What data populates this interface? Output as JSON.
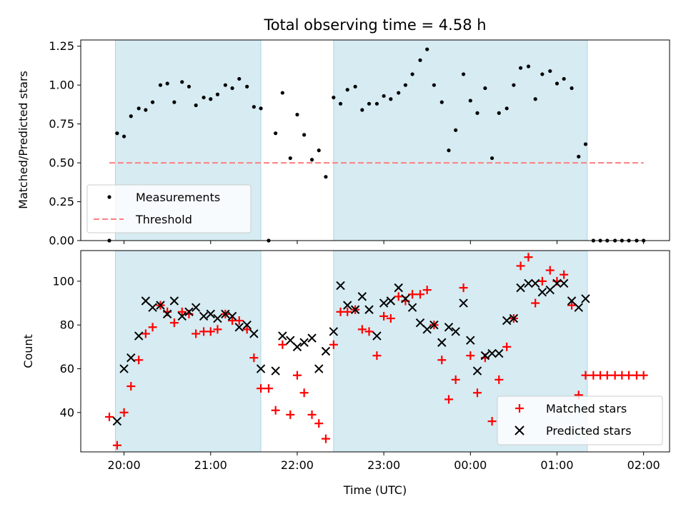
{
  "chart_data": [
    {
      "type": "scatter",
      "title": "Total observing time = 4.58 h",
      "ylabel": "Matched/Predicted stars",
      "xlabel": "",
      "xlim_hours": [
        19.5,
        26.3
      ],
      "ylim": [
        0,
        1.29
      ],
      "yticks": [
        "0.00",
        "0.25",
        "0.50",
        "0.75",
        "1.00",
        "1.25"
      ],
      "yticks_values": [
        0,
        0.25,
        0.5,
        0.75,
        1.0,
        1.25
      ],
      "xticks": [
        "20:00",
        "21:00",
        "22:00",
        "23:00",
        "00:00",
        "01:00",
        "02:00"
      ],
      "xticks_hours": [
        20,
        21,
        22,
        23,
        24,
        25,
        26
      ],
      "legend_position": "lower-left",
      "legend": [
        {
          "label": "Measurements",
          "marker": "dot",
          "color": "#000000"
        },
        {
          "label": "Threshold",
          "marker": "dashed-line",
          "color": "#ff7f7f"
        }
      ],
      "shaded_spans_hours": [
        [
          19.9,
          21.58
        ],
        [
          22.42,
          25.35
        ]
      ],
      "shade_color": "#add8e6",
      "threshold": {
        "value": 0.5,
        "x_hours": [
          19.83,
          26.0
        ]
      },
      "series": [
        {
          "name": "Measurements",
          "x_hours": [
            19.83,
            19.92,
            20.0,
            20.08,
            20.17,
            20.25,
            20.33,
            20.42,
            20.5,
            20.58,
            20.67,
            20.75,
            20.83,
            20.92,
            21.0,
            21.08,
            21.17,
            21.25,
            21.33,
            21.42,
            21.5,
            21.58,
            21.67,
            21.75,
            21.83,
            21.92,
            22.0,
            22.08,
            22.17,
            22.25,
            22.33,
            22.42,
            22.5,
            22.58,
            22.67,
            22.75,
            22.83,
            22.92,
            23.0,
            23.08,
            23.17,
            23.25,
            23.33,
            23.42,
            23.5,
            23.58,
            23.67,
            23.75,
            23.83,
            23.92,
            24.0,
            24.08,
            24.17,
            24.25,
            24.33,
            24.42,
            24.5,
            24.58,
            24.67,
            24.75,
            24.83,
            24.92,
            25.0,
            25.08,
            25.17,
            25.25,
            25.33,
            25.42,
            25.5,
            25.58,
            25.67,
            25.75,
            25.83,
            25.92,
            26.0
          ],
          "y": [
            0,
            0.69,
            0.67,
            0.8,
            0.85,
            0.84,
            0.89,
            1.0,
            1.01,
            0.89,
            1.02,
            0.99,
            0.87,
            0.92,
            0.91,
            0.94,
            1.0,
            0.98,
            1.04,
            0.99,
            0.86,
            0.85,
            0,
            0.69,
            0.95,
            0.53,
            0.81,
            0.68,
            0.52,
            0.58,
            0.41,
            0.92,
            0.88,
            0.97,
            0.99,
            0.84,
            0.88,
            0.88,
            0.93,
            0.91,
            0.95,
            1.0,
            1.07,
            1.16,
            1.23,
            1.0,
            0.89,
            0.58,
            0.71,
            1.07,
            0.9,
            0.82,
            0.98,
            0.53,
            0.82,
            0.85,
            1.0,
            1.11,
            1.12,
            0.91,
            1.07,
            1.09,
            1.01,
            1.04,
            0.98,
            0.54,
            0.62,
            0,
            0,
            0,
            0,
            0,
            0,
            0,
            0
          ]
        }
      ]
    },
    {
      "type": "scatter",
      "title": "",
      "ylabel": "Count",
      "xlabel": "Time (UTC)",
      "xlim_hours": [
        19.5,
        26.3
      ],
      "ylim": [
        22,
        114
      ],
      "yticks": [
        "40",
        "60",
        "80",
        "100"
      ],
      "yticks_values": [
        40,
        60,
        80,
        100
      ],
      "xticks": [
        "20:00",
        "21:00",
        "22:00",
        "23:00",
        "00:00",
        "01:00",
        "02:00"
      ],
      "xticks_hours": [
        20,
        21,
        22,
        23,
        24,
        25,
        26
      ],
      "legend_position": "lower-right",
      "legend": [
        {
          "label": "Matched stars",
          "marker": "plus",
          "color": "#ff0000"
        },
        {
          "label": "Predicted stars",
          "marker": "x",
          "color": "#000000"
        }
      ],
      "shaded_spans_hours": [
        [
          19.9,
          21.58
        ],
        [
          22.42,
          25.35
        ]
      ],
      "shade_color": "#add8e6",
      "series": [
        {
          "name": "Matched stars",
          "marker": "plus",
          "color": "#ff0000",
          "x_hours": [
            19.83,
            19.92,
            20.0,
            20.08,
            20.17,
            20.25,
            20.33,
            20.42,
            20.5,
            20.58,
            20.67,
            20.75,
            20.83,
            20.92,
            21.0,
            21.08,
            21.17,
            21.25,
            21.33,
            21.42,
            21.5,
            21.58,
            21.67,
            21.75,
            21.83,
            21.92,
            22.0,
            22.08,
            22.17,
            22.25,
            22.33,
            22.42,
            22.5,
            22.58,
            22.67,
            22.75,
            22.83,
            22.92,
            23.0,
            23.08,
            23.17,
            23.25,
            23.33,
            23.42,
            23.5,
            23.58,
            23.67,
            23.75,
            23.83,
            23.92,
            24.0,
            24.08,
            24.17,
            24.25,
            24.33,
            24.42,
            24.5,
            24.58,
            24.67,
            24.75,
            24.83,
            24.92,
            25.0,
            25.08,
            25.17,
            25.25,
            25.33,
            25.42,
            25.5,
            25.58,
            25.67,
            25.75,
            25.83,
            25.92,
            26.0
          ],
          "y": [
            38,
            25,
            40,
            52,
            64,
            76,
            79,
            89,
            86,
            81,
            86,
            85,
            76,
            77,
            77,
            78,
            85,
            82,
            82,
            78,
            65,
            51,
            51,
            41,
            71,
            39,
            57,
            49,
            39,
            35,
            28,
            71,
            86,
            86,
            87,
            78,
            77,
            66,
            84,
            83,
            93,
            91,
            94,
            94,
            96,
            80,
            64,
            46,
            55,
            97,
            66,
            49,
            65,
            36,
            55,
            70,
            83,
            107,
            111,
            90,
            100,
            105,
            100,
            103,
            89,
            48,
            57,
            57,
            57,
            57,
            57,
            57,
            57,
            57,
            57
          ]
        },
        {
          "name": "Predicted stars",
          "marker": "x",
          "color": "#000000",
          "x_hours": [
            19.92,
            20.0,
            20.08,
            20.17,
            20.25,
            20.33,
            20.42,
            20.5,
            20.58,
            20.67,
            20.75,
            20.83,
            20.92,
            21.0,
            21.08,
            21.17,
            21.25,
            21.33,
            21.42,
            21.5,
            21.58,
            21.75,
            21.83,
            21.92,
            22.0,
            22.08,
            22.17,
            22.25,
            22.33,
            22.42,
            22.5,
            22.58,
            22.67,
            22.75,
            22.83,
            22.92,
            23.0,
            23.08,
            23.17,
            23.25,
            23.33,
            23.42,
            23.5,
            23.58,
            23.67,
            23.75,
            23.83,
            23.92,
            24.0,
            24.08,
            24.17,
            24.25,
            24.33,
            24.42,
            24.5,
            24.58,
            24.67,
            24.75,
            24.83,
            24.92,
            25.0,
            25.08,
            25.17,
            25.25,
            25.33
          ],
          "y": [
            36,
            60,
            65,
            75,
            91,
            88,
            89,
            85,
            91,
            84,
            86,
            88,
            84,
            85,
            83,
            85,
            84,
            79,
            80,
            76,
            60,
            59,
            75,
            73,
            70,
            72,
            74,
            60,
            68,
            77,
            98,
            89,
            87,
            93,
            87,
            75,
            90,
            91,
            97,
            92,
            88,
            81,
            78,
            80,
            72,
            79,
            77,
            90,
            73,
            59,
            66,
            67,
            67,
            82,
            83,
            97,
            99,
            99,
            95,
            96,
            99,
            99,
            91,
            88,
            92
          ]
        }
      ]
    }
  ]
}
